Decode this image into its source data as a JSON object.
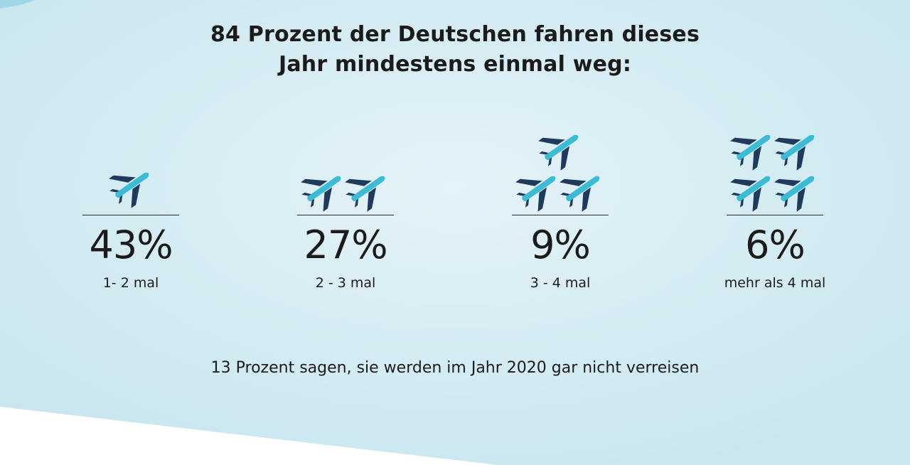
{
  "colors": {
    "background_light": "#e4f3f8",
    "background_mid": "#c9e6ef",
    "accent_corner": "#9fd6e8",
    "plane_body": "#3bbcd4",
    "plane_wing": "#1e3a5c",
    "text": "#1b1b1b"
  },
  "icon": "airplane-icon",
  "chart_data": {
    "type": "pictogram",
    "title_lines": [
      "84 Prozent der Deutschen fahren dieses",
      "Jahr mindestens einmal weg:"
    ],
    "unit": "%",
    "categories": [
      "1- 2 mal",
      "2 - 3 mal",
      "3 - 4 mal",
      "mehr als 4 mal"
    ],
    "values": [
      43,
      27,
      9,
      6
    ],
    "value_labels": [
      "43%",
      "27%",
      "9%",
      "6%"
    ],
    "icon_counts": [
      1,
      2,
      3,
      4
    ],
    "footnote": "13 Prozent sagen, sie werden im Jahr 2020 gar nicht verreisen"
  }
}
